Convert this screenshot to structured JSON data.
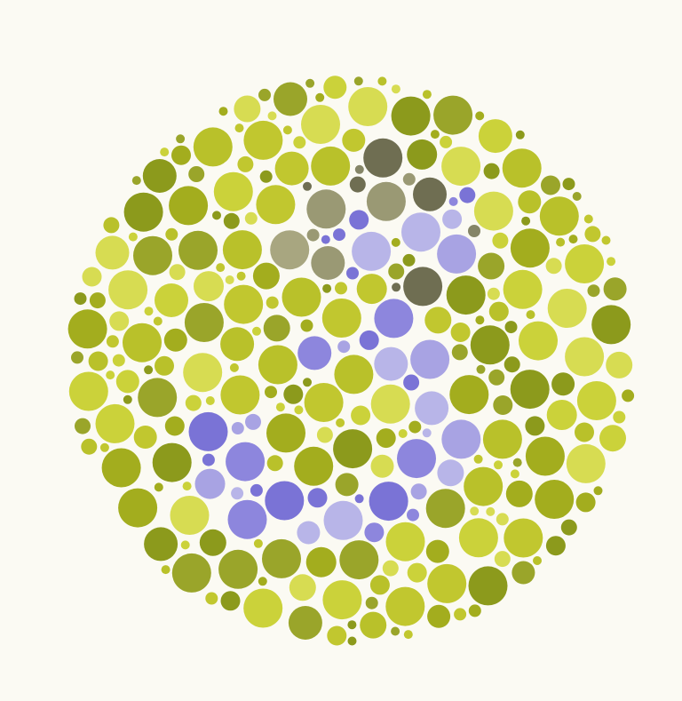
{
  "image": {
    "subject": "ishihara-color-vision-test-plate",
    "background_color": "#fbfaf3",
    "palette": {
      "field": [
        "#8c9a1c",
        "#a3ad1e",
        "#b9c12a",
        "#cbd23a",
        "#d7dc52",
        "#9aa52a",
        "#c1c72f"
      ],
      "figure_blue": [
        "#7a73d6",
        "#8d86dd",
        "#a8a3e3",
        "#b8b5e8"
      ],
      "figure_gray": [
        "#6f6e52",
        "#858567",
        "#9a9974",
        "#a8a680"
      ]
    },
    "depicted_numeral": "3",
    "icons": [
      "dot-pattern-icon"
    ]
  }
}
